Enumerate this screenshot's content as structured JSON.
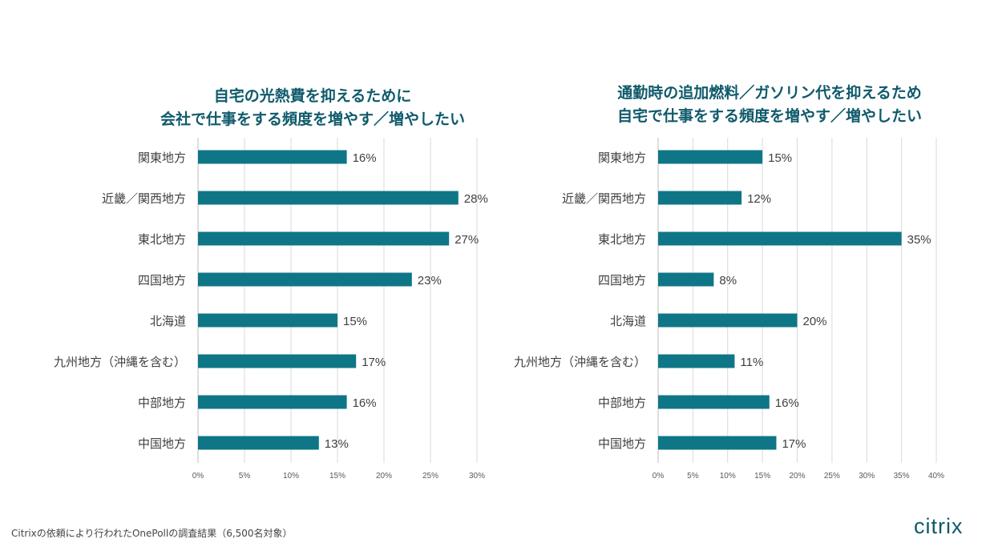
{
  "chart_data": [
    {
      "type": "bar",
      "orientation": "horizontal",
      "title": "自宅の光熱費を抑えるために 会社で仕事をする頻度を増やす／増やしたい",
      "title_lines": [
        "自宅の光熱費を抑えるために",
        "会社で仕事をする頻度を増やす／増やしたい"
      ],
      "categories": [
        "関東地方",
        "近畿／関西地方",
        "東北地方",
        "四国地方",
        "北海道",
        "九州地方（沖縄を含む）",
        "中部地方",
        "中国地方"
      ],
      "values": [
        16,
        28,
        27,
        23,
        15,
        17,
        16,
        13
      ],
      "value_labels": [
        "16%",
        "28%",
        "27%",
        "23%",
        "15%",
        "17%",
        "16%",
        "13%"
      ],
      "xlim": [
        0,
        30
      ],
      "ticks": [
        "0%",
        "5%",
        "10%",
        "15%",
        "20%",
        "25%",
        "30%"
      ],
      "grid": true,
      "color": "#0e7686"
    },
    {
      "type": "bar",
      "orientation": "horizontal",
      "title": "通勤時の追加燃料／ガソリン代を抑えるため 自宅で仕事をする頻度を増やす／増やしたい",
      "title_lines": [
        "通勤時の追加燃料／ガソリン代を抑えるため",
        "自宅で仕事をする頻度を増やす／増やしたい"
      ],
      "categories": [
        "関東地方",
        "近畿／関西地方",
        "東北地方",
        "四国地方",
        "北海道",
        "九州地方（沖縄を含む）",
        "中部地方",
        "中国地方"
      ],
      "values": [
        15,
        12,
        35,
        8,
        20,
        11,
        16,
        17
      ],
      "value_labels": [
        "15%",
        "12%",
        "35%",
        "8%",
        "20%",
        "11%",
        "16%",
        "17%"
      ],
      "xlim": [
        0,
        40
      ],
      "ticks": [
        "0%",
        "5%",
        "10%",
        "15%",
        "20%",
        "25%",
        "30%",
        "35%",
        "40%"
      ],
      "grid": true,
      "color": "#0e7686"
    }
  ],
  "footer": "Citrixの依頼により行われたOnePollの調査結果（6,500名対象）",
  "logo": "citrix",
  "colors": {
    "title": "#0f5a6b",
    "bar": "#0e7686"
  }
}
